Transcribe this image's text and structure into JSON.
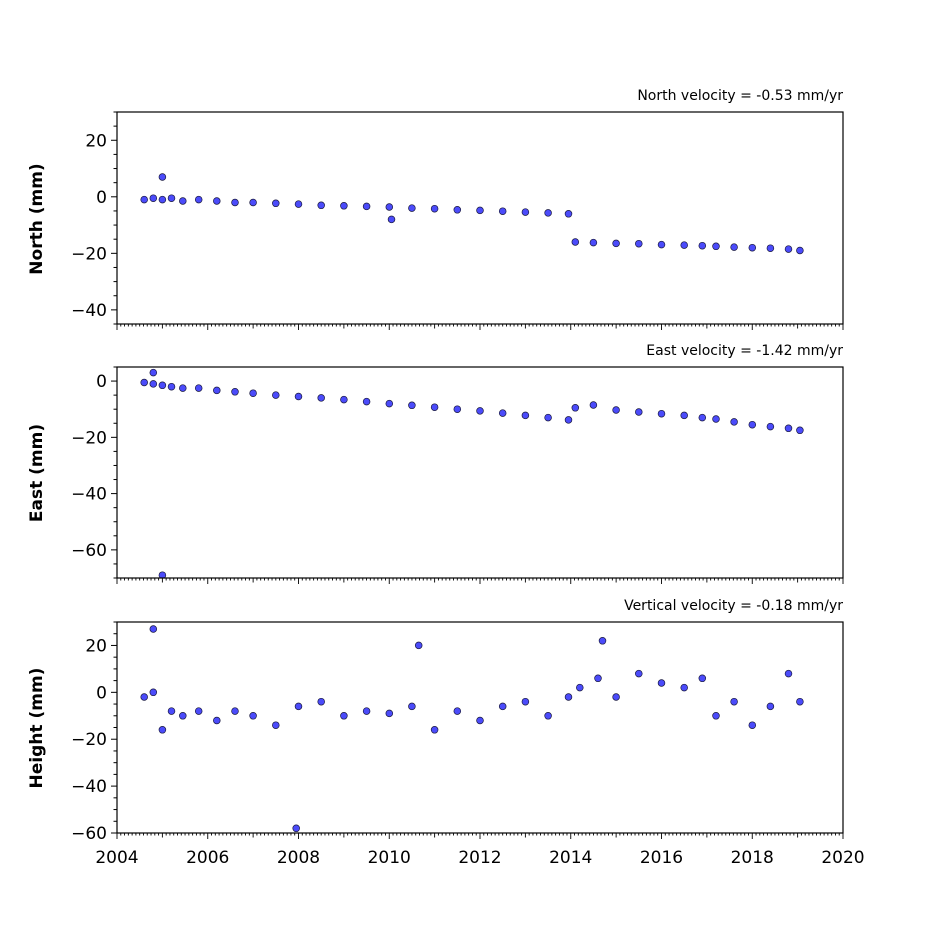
{
  "chart_data": [
    {
      "type": "scatter",
      "title": "North velocity = -0.53 mm/yr",
      "xlabel": "",
      "ylabel": "North (mm)",
      "xlim": [
        2004,
        2020
      ],
      "ylim": [
        -45,
        30
      ],
      "yticks": [
        "20",
        "0",
        "−20",
        "−40"
      ],
      "ytick_values": [
        20,
        0,
        -20,
        -40
      ],
      "marker_color": "#4b4bfa",
      "marker_edge": "#1a1a40",
      "x": [
        2004.6,
        2004.8,
        2005.0,
        2005.2,
        2005.45,
        2005.8,
        2006.2,
        2006.6,
        2007.0,
        2007.5,
        2008.0,
        2008.5,
        2009.0,
        2009.5,
        2010.0,
        2010.5,
        2011.0,
        2011.5,
        2012.0,
        2012.5,
        2013.0,
        2013.5,
        2013.95,
        2014.1,
        2014.5,
        2015.0,
        2015.5,
        2016.0,
        2016.5,
        2016.9,
        2017.2,
        2017.6,
        2018.0,
        2018.4,
        2018.8,
        2019.05,
        2005.0,
        2010.05
      ],
      "y": [
        -1,
        -0.5,
        -1,
        -0.5,
        -1.5,
        -1,
        -1.5,
        -2,
        -2,
        -2.3,
        -2.6,
        -3,
        -3.2,
        -3.4,
        -3.6,
        -4,
        -4.2,
        -4.6,
        -4.8,
        -5.1,
        -5.4,
        -5.7,
        -6,
        -16,
        -16.2,
        -16.5,
        -16.6,
        -16.9,
        -17.1,
        -17.3,
        -17.5,
        -17.8,
        -18,
        -18.2,
        -18.5,
        -19,
        7,
        -8
      ]
    },
    {
      "type": "scatter",
      "title": "East velocity = -1.42 mm/yr",
      "xlabel": "",
      "ylabel": "East (mm)",
      "xlim": [
        2004,
        2020
      ],
      "ylim": [
        -70,
        5
      ],
      "yticks": [
        "0",
        "−20",
        "−40",
        "−60"
      ],
      "ytick_values": [
        0,
        -20,
        -40,
        -60
      ],
      "marker_color": "#4b4bfa",
      "marker_edge": "#1a1a40",
      "x": [
        2004.6,
        2004.8,
        2005.0,
        2005.2,
        2005.45,
        2005.8,
        2006.2,
        2006.6,
        2007.0,
        2007.5,
        2008.0,
        2008.5,
        2009.0,
        2009.5,
        2010.0,
        2010.5,
        2011.0,
        2011.5,
        2012.0,
        2012.5,
        2013.0,
        2013.5,
        2013.95,
        2014.1,
        2014.5,
        2015.0,
        2015.5,
        2016.0,
        2016.5,
        2016.9,
        2017.2,
        2017.6,
        2018.0,
        2018.4,
        2018.8,
        2019.05,
        2005.0,
        2004.8
      ],
      "y": [
        -0.5,
        -1,
        -1.5,
        -2,
        -2.5,
        -2.5,
        -3.3,
        -3.8,
        -4.3,
        -5,
        -5.5,
        -6,
        -6.6,
        -7.3,
        -8,
        -8.6,
        -9.3,
        -10,
        -10.6,
        -11.4,
        -12.2,
        -13,
        -13.8,
        -9.5,
        -8.5,
        -10.3,
        -11,
        -11.6,
        -12.2,
        -13,
        -13.5,
        -14.5,
        -15.5,
        -16.2,
        -16.8,
        -17.5,
        -69,
        3
      ]
    },
    {
      "type": "scatter",
      "title": "Vertical velocity = -0.18 mm/yr",
      "xlabel": "",
      "ylabel": "Height (mm)",
      "xlim": [
        2004,
        2020
      ],
      "ylim": [
        -60,
        30
      ],
      "yticks": [
        "20",
        "0",
        "−20",
        "−40",
        "−60"
      ],
      "ytick_values": [
        20,
        0,
        -20,
        -40,
        -60
      ],
      "xticks": [
        "2004",
        "2006",
        "2008",
        "2010",
        "2012",
        "2014",
        "2016",
        "2018",
        "2020"
      ],
      "xtick_values": [
        2004,
        2006,
        2008,
        2010,
        2012,
        2014,
        2016,
        2018,
        2020
      ],
      "marker_color": "#4b4bfa",
      "marker_edge": "#1a1a40",
      "x": [
        2004.6,
        2004.8,
        2005.0,
        2005.2,
        2005.45,
        2005.8,
        2006.2,
        2006.6,
        2007.0,
        2007.5,
        2008.0,
        2008.5,
        2009.0,
        2009.5,
        2010.0,
        2010.5,
        2011.0,
        2011.5,
        2012.0,
        2012.5,
        2013.0,
        2013.5,
        2013.95,
        2014.2,
        2014.6,
        2015.0,
        2015.5,
        2016.0,
        2016.5,
        2016.9,
        2017.2,
        2017.6,
        2018.0,
        2018.4,
        2018.8,
        2019.05,
        2004.8,
        2007.95,
        2010.65,
        2014.7
      ],
      "y": [
        -2,
        0,
        -16,
        -8,
        -10,
        -8,
        -12,
        -8,
        -10,
        -14,
        -6,
        -4,
        -10,
        -8,
        -9,
        -6,
        -16,
        -8,
        -12,
        -6,
        -4,
        -10,
        -2,
        2,
        6,
        -2,
        8,
        4,
        2,
        6,
        -10,
        -4,
        -14,
        -6,
        8,
        -4,
        27,
        -58,
        20,
        22
      ]
    }
  ]
}
